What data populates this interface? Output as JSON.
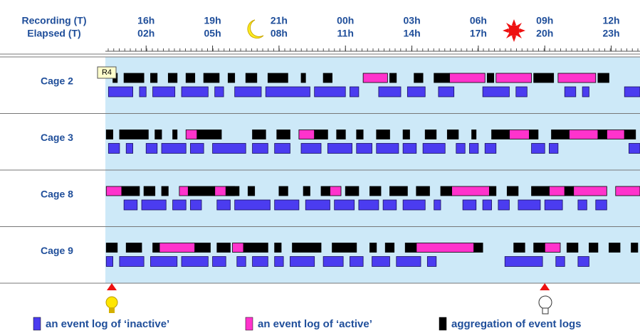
{
  "chart_data": {
    "type": "timeline",
    "header_top": "Recording (T)",
    "header_bottom": "Elapsed (T)",
    "xlim": [
      0.16,
      24.3
    ],
    "xticks": [
      {
        "value": 2,
        "label": "02h"
      },
      {
        "value": 5,
        "label": "05h"
      },
      {
        "value": 8,
        "label": "08h"
      },
      {
        "value": 11,
        "label": "11h"
      },
      {
        "value": 14,
        "label": "14h"
      },
      {
        "value": 17,
        "label": "17h"
      },
      {
        "value": 20,
        "label": "20h"
      },
      {
        "value": 23,
        "label": "23h"
      }
    ],
    "recording_labels": [
      "16h",
      "19h",
      "21h",
      "00h",
      "03h",
      "06h",
      "09h",
      "12h"
    ],
    "tooltip": "R4",
    "markers": [
      0.45,
      20
    ],
    "series": [
      {
        "name": "an event log of ‘inactive’",
        "color": "#4b3cf0"
      },
      {
        "name": "an event log of ‘active’",
        "color": "#ff33cc"
      },
      {
        "name": "aggregation of event logs",
        "color": "#000000"
      }
    ],
    "rows": [
      {
        "label": "Cage 2",
        "events": [
          [
            [
              0.3,
              1.4
            ],
            [
              1.7,
              2.0
            ],
            [
              2.3,
              3.3
            ],
            [
              3.6,
              4.8
            ],
            [
              5.1,
              5.5
            ],
            [
              6.0,
              7.2
            ],
            [
              7.4,
              9.4
            ],
            [
              9.6,
              11.0
            ],
            [
              11.2,
              11.6
            ],
            [
              12.5,
              13.5
            ],
            [
              13.8,
              14.6
            ],
            [
              15.2,
              15.9
            ],
            [
              17.2,
              18.4
            ],
            [
              18.7,
              19.2
            ],
            [
              20.9,
              21.4
            ],
            [
              21.7,
              22.0
            ],
            [
              23.6,
              24.3
            ]
          ],
          [
            [
              11.8,
              12.9
            ],
            [
              15.7,
              17.3
            ],
            [
              17.8,
              19.4
            ],
            [
              20.6,
              22.3
            ]
          ],
          [
            [
              0.5,
              0.7
            ],
            [
              1.0,
              1.9
            ],
            [
              2.2,
              2.5
            ],
            [
              3.0,
              3.4
            ],
            [
              3.8,
              4.2
            ],
            [
              4.6,
              5.3
            ],
            [
              5.7,
              6.0
            ],
            [
              6.5,
              7.0
            ],
            [
              7.5,
              8.4
            ],
            [
              9.0,
              9.2
            ],
            [
              10.0,
              10.4
            ],
            [
              13.0,
              13.3
            ],
            [
              14.1,
              14.5
            ],
            [
              15.0,
              15.7
            ],
            [
              17.4,
              17.7
            ],
            [
              19.5,
              20.4
            ],
            [
              22.4,
              22.9
            ]
          ]
        ]
      },
      {
        "label": "Cage 3",
        "events": [
          [
            [
              0.3,
              0.8
            ],
            [
              1.1,
              1.4
            ],
            [
              2.0,
              2.5
            ],
            [
              2.7,
              3.8
            ],
            [
              4.0,
              4.6
            ],
            [
              5.0,
              6.5
            ],
            [
              6.8,
              7.5
            ],
            [
              7.8,
              8.5
            ],
            [
              9.0,
              9.9
            ],
            [
              10.2,
              11.3
            ],
            [
              11.5,
              12.2
            ],
            [
              12.4,
              13.4
            ],
            [
              13.6,
              14.2
            ],
            [
              14.5,
              15.5
            ],
            [
              16.0,
              16.4
            ],
            [
              16.6,
              17.0
            ],
            [
              17.3,
              17.8
            ],
            [
              19.4,
              20.0
            ],
            [
              20.2,
              20.6
            ],
            [
              23.8,
              24.3
            ]
          ],
          [
            [
              3.8,
              4.3
            ],
            [
              8.9,
              9.6
            ],
            [
              18.4,
              19.3
            ],
            [
              21.1,
              22.4
            ],
            [
              22.8,
              23.6
            ]
          ],
          [
            [
              0.2,
              0.5
            ],
            [
              0.8,
              2.1
            ],
            [
              2.4,
              2.7
            ],
            [
              3.2,
              3.4
            ],
            [
              4.3,
              5.4
            ],
            [
              6.8,
              7.4
            ],
            [
              7.9,
              8.5
            ],
            [
              9.6,
              10.2
            ],
            [
              10.6,
              11.0
            ],
            [
              11.5,
              11.8
            ],
            [
              12.4,
              13.0
            ],
            [
              13.6,
              13.9
            ],
            [
              14.6,
              15.1
            ],
            [
              15.6,
              16.1
            ],
            [
              16.7,
              16.9
            ],
            [
              17.6,
              18.4
            ],
            [
              19.3,
              19.7
            ],
            [
              20.3,
              21.1
            ],
            [
              22.4,
              22.8
            ],
            [
              23.6,
              24.1
            ]
          ]
        ]
      },
      {
        "label": "Cage 8",
        "events": [
          [
            [
              1.0,
              1.6
            ],
            [
              1.8,
              2.9
            ],
            [
              3.2,
              3.8
            ],
            [
              4.0,
              4.5
            ],
            [
              5.2,
              5.8
            ],
            [
              6.0,
              7.6
            ],
            [
              7.8,
              8.9
            ],
            [
              9.2,
              10.3
            ],
            [
              10.5,
              11.4
            ],
            [
              11.6,
              12.5
            ],
            [
              12.7,
              13.3
            ],
            [
              13.6,
              14.6
            ],
            [
              15.0,
              15.3
            ],
            [
              16.3,
              16.9
            ],
            [
              17.2,
              17.6
            ],
            [
              17.9,
              18.4
            ],
            [
              18.8,
              19.8
            ],
            [
              20.0,
              20.8
            ],
            [
              21.5,
              21.9
            ],
            [
              22.3,
              22.8
            ]
          ],
          [
            [
              0.2,
              0.9
            ],
            [
              3.5,
              3.9
            ],
            [
              5.1,
              6.0
            ],
            [
              10.3,
              10.8
            ],
            [
              15.8,
              17.5
            ],
            [
              20.2,
              20.9
            ],
            [
              21.3,
              22.8
            ],
            [
              23.2,
              24.3
            ]
          ],
          [
            [
              0.9,
              1.7
            ],
            [
              1.9,
              2.4
            ],
            [
              2.7,
              3.0
            ],
            [
              3.9,
              5.1
            ],
            [
              5.6,
              6.2
            ],
            [
              6.6,
              6.9
            ],
            [
              8.0,
              8.4
            ],
            [
              9.1,
              9.4
            ],
            [
              9.9,
              10.3
            ],
            [
              11.0,
              11.6
            ],
            [
              12.1,
              12.6
            ],
            [
              13.0,
              13.8
            ],
            [
              14.2,
              14.8
            ],
            [
              15.3,
              15.8
            ],
            [
              17.5,
              17.8
            ],
            [
              18.3,
              18.8
            ],
            [
              19.4,
              20.2
            ],
            [
              20.9,
              21.3
            ]
          ]
        ]
      },
      {
        "label": "Cage 9",
        "events": [
          [
            [
              0.2,
              0.5
            ],
            [
              0.8,
              1.9
            ],
            [
              2.2,
              3.4
            ],
            [
              3.6,
              4.8
            ],
            [
              5.0,
              5.6
            ],
            [
              6.1,
              6.5
            ],
            [
              6.8,
              7.5
            ],
            [
              7.8,
              8.2
            ],
            [
              8.5,
              9.6
            ],
            [
              10.0,
              10.9
            ],
            [
              11.2,
              11.8
            ],
            [
              12.2,
              13.0
            ],
            [
              13.3,
              14.4
            ],
            [
              14.7,
              15.1
            ],
            [
              18.2,
              19.9
            ],
            [
              20.5,
              20.9
            ],
            [
              21.5,
              22.0
            ]
          ],
          [
            [
              2.6,
              4.2
            ],
            [
              5.9,
              6.4
            ],
            [
              14.2,
              16.8
            ],
            [
              20.0,
              20.7
            ]
          ],
          [
            [
              0.2,
              0.7
            ],
            [
              1.1,
              1.8
            ],
            [
              2.3,
              2.6
            ],
            [
              4.2,
              4.9
            ],
            [
              5.2,
              5.8
            ],
            [
              6.4,
              7.5
            ],
            [
              7.8,
              8.1
            ],
            [
              8.6,
              9.9
            ],
            [
              10.4,
              11.5
            ],
            [
              12.1,
              12.4
            ],
            [
              12.8,
              13.2
            ],
            [
              13.7,
              14.2
            ],
            [
              16.8,
              17.2
            ],
            [
              18.6,
              19.1
            ],
            [
              19.5,
              20.0
            ],
            [
              21.0,
              21.5
            ],
            [
              22.0,
              22.4
            ],
            [
              22.9,
              23.4
            ],
            [
              23.9,
              24.2
            ]
          ]
        ]
      }
    ]
  }
}
